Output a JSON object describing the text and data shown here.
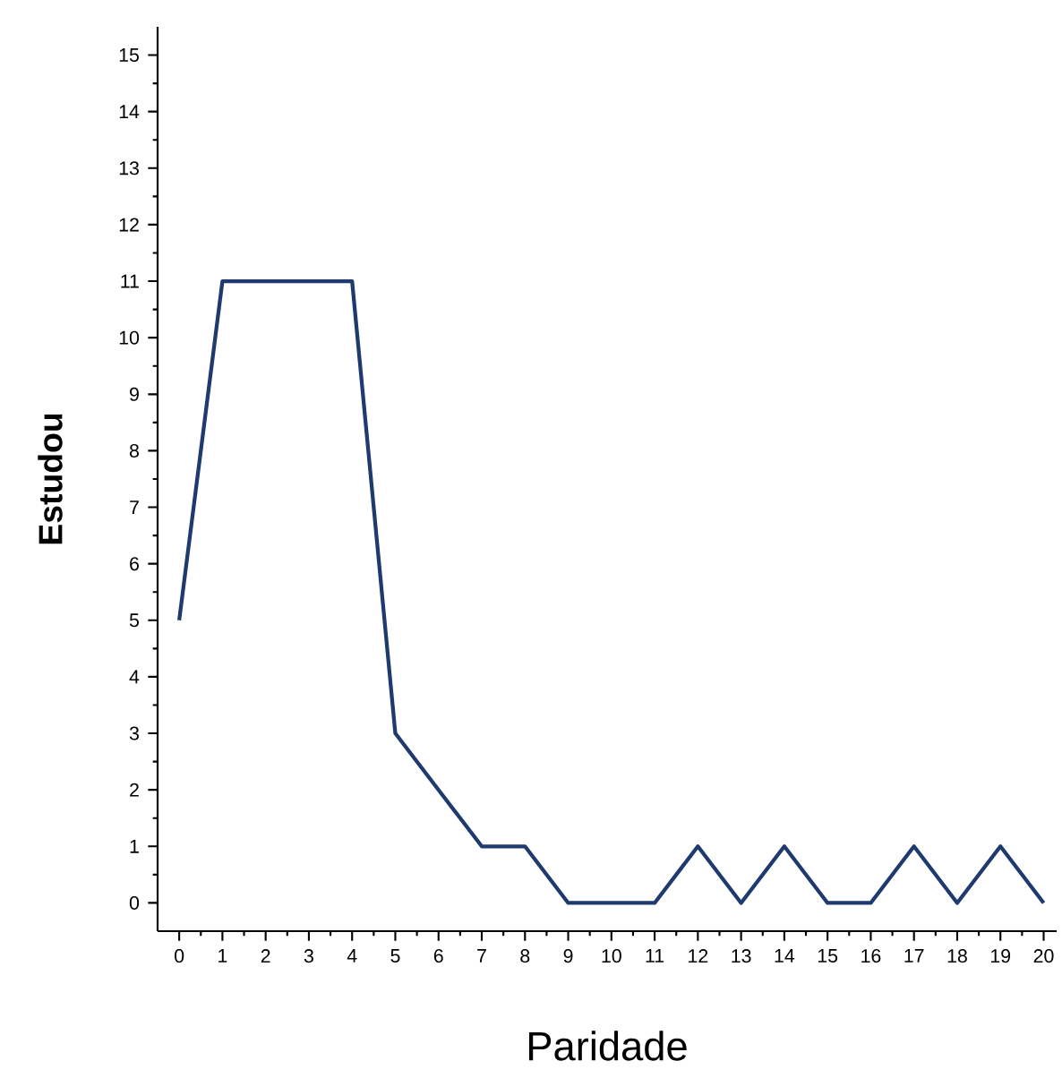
{
  "chart_data": {
    "type": "line",
    "xlabel": "Paridade",
    "ylabel": "Estudou",
    "x": [
      0,
      1,
      2,
      3,
      4,
      5,
      6,
      7,
      8,
      9,
      10,
      11,
      12,
      13,
      14,
      15,
      16,
      17,
      18,
      19,
      20
    ],
    "values": [
      5,
      11,
      11,
      11,
      11,
      3,
      2,
      1,
      1,
      0,
      0,
      0,
      1,
      0,
      1,
      0,
      0,
      1,
      0,
      1,
      0
    ],
    "color": "#1f3a6e",
    "xlim": [
      -0.5,
      20.3
    ],
    "ylim": [
      -0.5,
      15.5
    ],
    "xticks": [
      0,
      1,
      2,
      3,
      4,
      5,
      6,
      7,
      8,
      9,
      10,
      11,
      12,
      13,
      14,
      15,
      16,
      17,
      18,
      19,
      20
    ],
    "yticks": [
      0,
      1,
      2,
      3,
      4,
      5,
      6,
      7,
      8,
      9,
      10,
      11,
      12,
      13,
      14,
      15
    ],
    "grid": false
  }
}
